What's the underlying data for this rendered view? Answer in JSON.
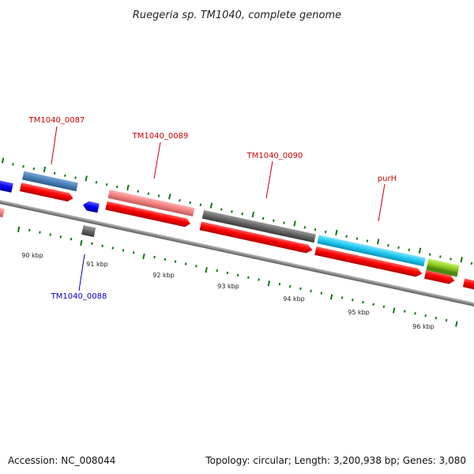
{
  "title": "Ruegeria sp. TM1040, complete genome",
  "footer": {
    "accession": "Accession: NC_008044",
    "topology": "Topology: circular; Length: 3,200,938 bp; Genes: 3,080"
  },
  "axis_labels": [
    "90 kbp",
    "91 kbp",
    "92 kbp",
    "93 kbp",
    "94 kbp",
    "95 kbp",
    "96 kbp"
  ],
  "gene_labels": [
    {
      "text": "TM1040_0087",
      "color": "#cc0000"
    },
    {
      "text": "TM1040_0088",
      "color": "#0000cc"
    },
    {
      "text": "TM1040_0089",
      "color": "#cc0000"
    },
    {
      "text": "TM1040_0090",
      "color": "#cc0000"
    },
    {
      "text": "purH",
      "color": "#cc0000"
    }
  ],
  "colors": {
    "backbone": "#8a8a8a",
    "cds_red": "#ff0000",
    "tick_green": "#117711",
    "gene_blue": "#4a7fb5",
    "gene_pink": "#f08080",
    "gene_gray": "#666666",
    "gene_cyan": "#1fc7f0",
    "gene_lime": "#8ed020",
    "strand_blue": "#0000ee"
  }
}
